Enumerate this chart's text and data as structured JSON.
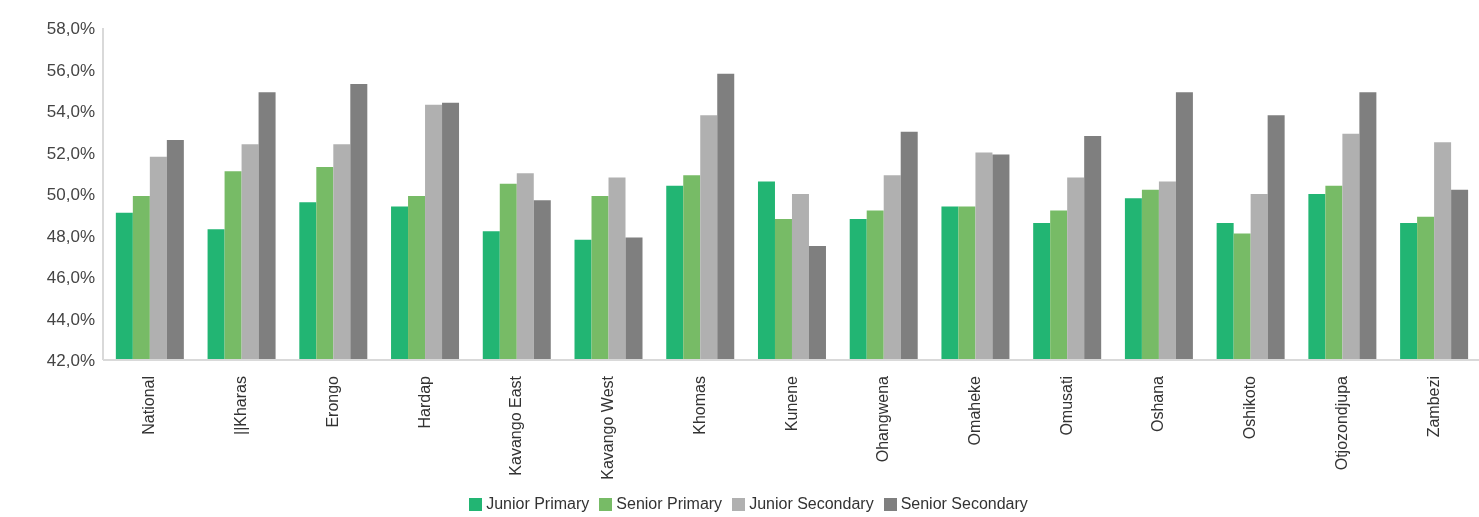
{
  "chart_data": {
    "type": "bar",
    "categories": [
      "National",
      "||Kharas",
      "Erongo",
      "Hardap",
      "Kavango East",
      "Kavango West",
      "Khomas",
      "Kunene",
      "Ohangwena",
      "Omaheke",
      "Omusati",
      "Oshana",
      "Oshikoto",
      "Otjozondjupa",
      "Zambezi"
    ],
    "series": [
      {
        "name": "Junior Primary",
        "color": "#22b573",
        "values": [
          49.1,
          48.3,
          49.6,
          49.4,
          48.2,
          47.8,
          50.4,
          50.6,
          48.8,
          49.4,
          48.6,
          49.8,
          48.6,
          50.0,
          48.6
        ]
      },
      {
        "name": "Senior Primary",
        "color": "#77bb66",
        "values": [
          49.9,
          51.1,
          51.3,
          49.9,
          50.5,
          49.9,
          50.9,
          48.8,
          49.2,
          49.4,
          49.2,
          50.2,
          48.1,
          50.4,
          48.9
        ]
      },
      {
        "name": "Junior Secondary",
        "color": "#b0b0b0",
        "values": [
          51.8,
          52.4,
          52.4,
          54.3,
          51.0,
          50.8,
          53.8,
          50.0,
          50.9,
          52.0,
          50.8,
          50.6,
          50.0,
          52.9,
          52.5
        ]
      },
      {
        "name": "Senior Secondary",
        "color": "#7f7f7f",
        "values": [
          52.6,
          54.9,
          55.3,
          54.4,
          49.7,
          47.9,
          55.8,
          47.5,
          53.0,
          51.9,
          52.8,
          54.9,
          53.8,
          54.9,
          50.2
        ]
      }
    ],
    "ylim": [
      42,
      58
    ],
    "yticks": [
      {
        "value": 42,
        "label": "42,0%"
      },
      {
        "value": 44,
        "label": "44,0%"
      },
      {
        "value": 46,
        "label": "46,0%"
      },
      {
        "value": 48,
        "label": "48,0%"
      },
      {
        "value": 50,
        "label": "50,0%"
      },
      {
        "value": 52,
        "label": "52,0%"
      },
      {
        "value": 54,
        "label": "54,0%"
      },
      {
        "value": 56,
        "label": "56,0%"
      },
      {
        "value": 58,
        "label": "58,0%"
      }
    ],
    "legend": "bottom"
  }
}
